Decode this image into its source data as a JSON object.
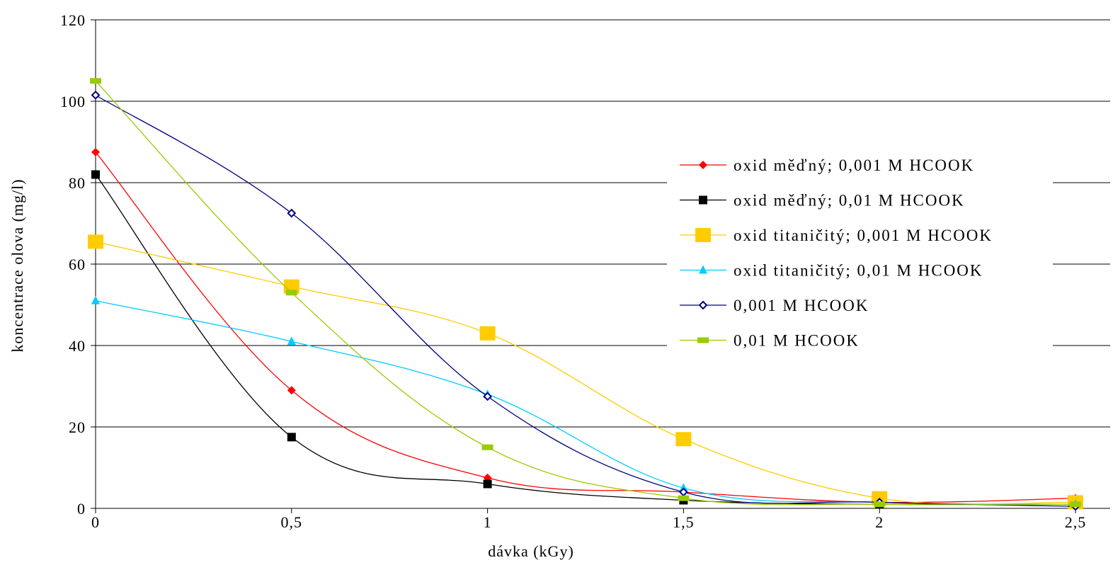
{
  "chart_data": {
    "type": "line",
    "title": "",
    "xlabel": "dávka (kGy)",
    "ylabel": "koncentrace olova (mg/l)",
    "xlim": [
      0,
      2.5
    ],
    "ylim": [
      0,
      120
    ],
    "x_ticks": [
      "0",
      "0,5",
      "1",
      "1,5",
      "2",
      "2,5"
    ],
    "y_ticks": [
      "0",
      "20",
      "40",
      "60",
      "80",
      "100",
      "120"
    ],
    "grid": "horizontal",
    "legend_position": "right",
    "x": [
      0,
      0.5,
      1,
      1.5,
      2,
      2.5
    ],
    "series": [
      {
        "name": "oxid měďný; 0,001 M HCOOK",
        "color": "#ff0000",
        "marker_color": "#ff0000",
        "marker": "diamond",
        "values": [
          87.5,
          29,
          7.5,
          4,
          1.5,
          2.5
        ]
      },
      {
        "name": "oxid měďný; 0,01 M HCOOK",
        "color": "#000000",
        "marker_color": "#000000",
        "marker": "square",
        "values": [
          82,
          17.5,
          6,
          2,
          1,
          1
        ]
      },
      {
        "name": "oxid titaničitý; 0,001 M HCOOK",
        "color": "#ffcc00",
        "marker_color": "#ffcc00",
        "marker": "square-large",
        "values": [
          65.5,
          54.5,
          43,
          17,
          2.5,
          1.5
        ]
      },
      {
        "name": "oxid titaničitý; 0,01 M HCOOK",
        "color": "#00ccff",
        "marker_color": "#00ccff",
        "marker": "triangle",
        "values": [
          51,
          41,
          28,
          5,
          1.5,
          1
        ]
      },
      {
        "name": "0,001 M HCOOK",
        "color": "#000080",
        "marker_color": "#000080",
        "marker": "diamond-open",
        "values": [
          101.5,
          72.5,
          27.5,
          4,
          1.5,
          0.5
        ]
      },
      {
        "name": "0,01 M HCOOK",
        "color": "#99cc00",
        "marker_color": "#99cc00",
        "marker": "dash",
        "values": [
          105,
          53,
          15,
          2.5,
          1,
          1
        ]
      }
    ]
  }
}
